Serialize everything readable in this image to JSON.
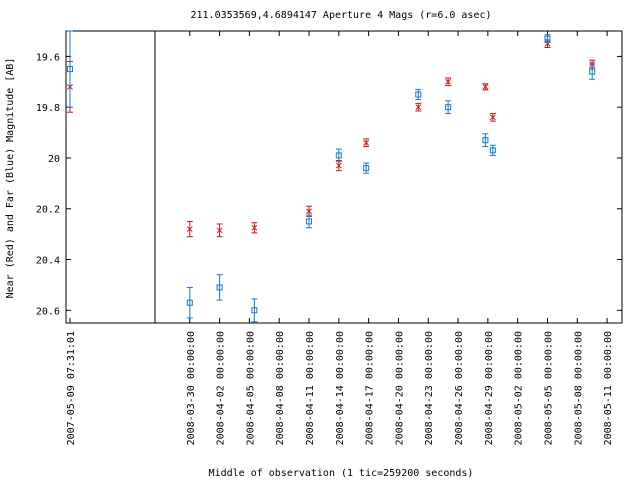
{
  "chart_data": {
    "type": "scatter",
    "title": "211.0353569,4.6894147   Aperture 4 Mags (r=6.0 asec)",
    "xlabel": "Middle of observation (1 tic=259200 seconds)",
    "ylabel": "Near (Red) and Far (Blue) Magnitude [AB]",
    "y_inverted": true,
    "ylim": [
      20.65,
      19.5
    ],
    "y_ticks": [
      19.6,
      19.8,
      20,
      20.2,
      20.4,
      20.6
    ],
    "y_tick_labels": [
      "19.6",
      "19.8",
      "20",
      "20.2",
      "20.4",
      "20.6"
    ],
    "x_broken_axis": true,
    "panel_left": {
      "xlim": [
        "2007-05-09 07:31:01",
        "2007-05-09 07:31:01"
      ],
      "tick_labels": [
        "2007-05-09 07:31:01"
      ]
    },
    "panel_right": {
      "xlim": [
        "2008-03-26 12:00:00",
        "2008-05-12 12:00:00"
      ],
      "tick_labels": [
        "2008-03-30 00:00:00",
        "2008-04-02 00:00:00",
        "2008-04-05 00:00:00",
        "2008-04-08 00:00:00",
        "2008-04-11 00:00:00",
        "2008-04-14 00:00:00",
        "2008-04-17 00:00:00",
        "2008-04-20 00:00:00",
        "2008-04-23 00:00:00",
        "2008-04-26 00:00:00",
        "2008-04-29 00:00:00",
        "2008-05-02 00:00:00",
        "2008-05-05 00:00:00",
        "2008-05-08 00:00:00",
        "2008-05-11 00:00:00"
      ]
    },
    "series": [
      {
        "color": "#d01818",
        "marker": "x",
        "points": [
          {
            "x": "2007-05-09 07:31:01",
            "y": 19.72,
            "err": 0.1
          },
          {
            "x": "2008-03-30 00:00:00",
            "y": 20.28,
            "err": 0.03
          },
          {
            "x": "2008-04-02 00:00:00",
            "y": 20.285,
            "err": 0.025
          },
          {
            "x": "2008-04-05 12:00:00",
            "y": 20.275,
            "err": 0.02
          },
          {
            "x": "2008-04-11 00:00:00",
            "y": 20.21,
            "err": 0.02
          },
          {
            "x": "2008-04-14 00:00:00",
            "y": 20.03,
            "err": 0.02
          },
          {
            "x": "2008-04-16 18:00:00",
            "y": 19.94,
            "err": 0.015
          },
          {
            "x": "2008-04-22 00:00:00",
            "y": 19.8,
            "err": 0.015
          },
          {
            "x": "2008-04-25 00:00:00",
            "y": 19.7,
            "err": 0.015
          },
          {
            "x": "2008-04-28 18:00:00",
            "y": 19.72,
            "err": 0.012
          },
          {
            "x": "2008-04-29 12:00:00",
            "y": 19.84,
            "err": 0.015
          },
          {
            "x": "2008-05-05 00:00:00",
            "y": 19.55,
            "err": 0.015
          },
          {
            "x": "2008-05-09 12:00:00",
            "y": 19.63,
            "err": 0.015
          }
        ]
      },
      {
        "color": "#1878d0",
        "marker": "square",
        "points": [
          {
            "x": "2007-05-09 07:31:01",
            "y": 19.65,
            "err": 0.15
          },
          {
            "x": "2008-03-30 00:00:00",
            "y": 20.57,
            "err": 0.06
          },
          {
            "x": "2008-04-02 00:00:00",
            "y": 20.51,
            "err": 0.05
          },
          {
            "x": "2008-04-05 12:00:00",
            "y": 20.6,
            "err": 0.045
          },
          {
            "x": "2008-04-11 00:00:00",
            "y": 20.25,
            "err": 0.025
          },
          {
            "x": "2008-04-14 00:00:00",
            "y": 19.99,
            "err": 0.025
          },
          {
            "x": "2008-04-16 18:00:00",
            "y": 20.04,
            "err": 0.02
          },
          {
            "x": "2008-04-22 00:00:00",
            "y": 19.75,
            "err": 0.02
          },
          {
            "x": "2008-04-25 00:00:00",
            "y": 19.8,
            "err": 0.025
          },
          {
            "x": "2008-04-28 18:00:00",
            "y": 19.93,
            "err": 0.025
          },
          {
            "x": "2008-04-29 12:00:00",
            "y": 19.97,
            "err": 0.02
          },
          {
            "x": "2008-05-05 00:00:00",
            "y": 19.53,
            "err": 0.015
          },
          {
            "x": "2008-05-09 12:00:00",
            "y": 19.66,
            "err": 0.03
          }
        ]
      }
    ]
  }
}
